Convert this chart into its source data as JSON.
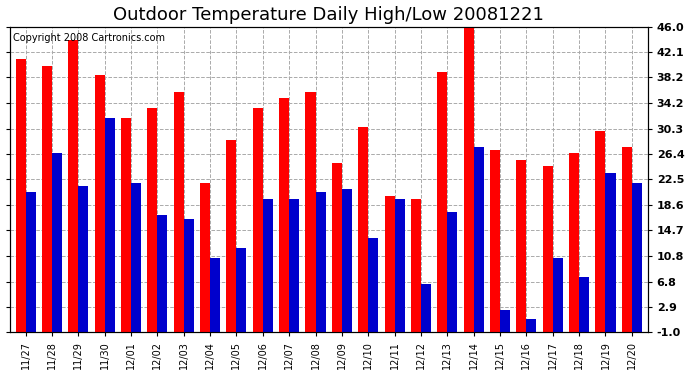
{
  "title": "Outdoor Temperature Daily High/Low 20081221",
  "copyright": "Copyright 2008 Cartronics.com",
  "dates": [
    "11/27",
    "11/28",
    "11/29",
    "11/30",
    "12/01",
    "12/02",
    "12/03",
    "12/04",
    "12/05",
    "12/06",
    "12/07",
    "12/08",
    "12/09",
    "12/10",
    "12/11",
    "12/12",
    "12/13",
    "12/14",
    "12/15",
    "12/16",
    "12/17",
    "12/18",
    "12/19",
    "12/20"
  ],
  "highs": [
    41.0,
    40.0,
    44.0,
    38.5,
    32.0,
    33.5,
    36.0,
    22.0,
    28.5,
    33.5,
    35.0,
    36.0,
    25.0,
    30.5,
    20.0,
    19.5,
    39.0,
    46.0,
    27.0,
    25.5,
    24.5,
    26.5,
    30.0,
    27.5
  ],
  "lows": [
    20.5,
    26.5,
    21.5,
    32.0,
    22.0,
    17.0,
    16.5,
    10.5,
    12.0,
    19.5,
    19.5,
    20.5,
    21.0,
    13.5,
    19.5,
    6.5,
    17.5,
    27.5,
    2.5,
    1.0,
    10.5,
    7.5,
    23.5,
    22.0
  ],
  "high_color": "#ff0000",
  "low_color": "#0000cc",
  "bg_color": "#ffffff",
  "plot_bg": "#ffffff",
  "grid_color": "#aaaaaa",
  "title_fontsize": 13,
  "copyright_fontsize": 7,
  "yticks": [
    -1.0,
    2.9,
    6.8,
    10.8,
    14.7,
    18.6,
    22.5,
    26.4,
    30.3,
    34.2,
    38.2,
    42.1,
    46.0
  ],
  "ylim": [
    -1.0,
    46.0
  ],
  "bar_width": 0.38,
  "figwidth": 6.9,
  "figheight": 3.75,
  "dpi": 100
}
